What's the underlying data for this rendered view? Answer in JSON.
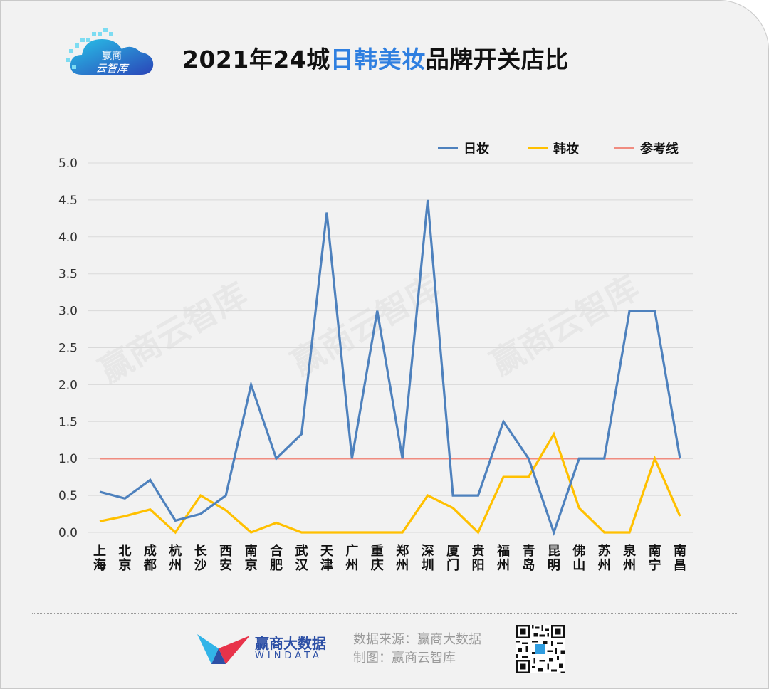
{
  "header": {
    "logo_text": "赢商云智库",
    "title_prefix": "2021年24城",
    "title_highlight": "日韩美妆",
    "title_suffix": "品牌开关店比"
  },
  "watermark": "赢商云智库",
  "chart_data": {
    "type": "line",
    "categories": [
      [
        "上",
        "海"
      ],
      [
        "北",
        "京"
      ],
      [
        "成",
        "都"
      ],
      [
        "杭",
        "州"
      ],
      [
        "长",
        "沙"
      ],
      [
        "西",
        "安"
      ],
      [
        "南",
        "京"
      ],
      [
        "合",
        "肥"
      ],
      [
        "武",
        "汉"
      ],
      [
        "天",
        "津"
      ],
      [
        "广",
        "州"
      ],
      [
        "重",
        "庆"
      ],
      [
        "郑",
        "州"
      ],
      [
        "深",
        "圳"
      ],
      [
        "厦",
        "门"
      ],
      [
        "贵",
        "阳"
      ],
      [
        "福",
        "州"
      ],
      [
        "青",
        "岛"
      ],
      [
        "昆",
        "明"
      ],
      [
        "佛",
        "山"
      ],
      [
        "苏",
        "州"
      ],
      [
        "泉",
        "州"
      ],
      [
        "南",
        "宁"
      ],
      [
        "南",
        "昌"
      ]
    ],
    "ylim": [
      0,
      5
    ],
    "yticks": [
      0,
      0.5,
      1,
      1.5,
      2,
      2.5,
      3,
      3.5,
      4,
      4.5,
      5
    ],
    "grid": true,
    "legend_position": "top-right",
    "series": [
      {
        "name": "日妆",
        "color": "#4e81bd",
        "values": [
          0.55,
          0.46,
          0.71,
          0.16,
          0.25,
          0.5,
          2.0,
          1.0,
          1.33,
          4.33,
          1.0,
          3.0,
          1.0,
          4.5,
          0.5,
          0.5,
          1.5,
          1.0,
          0.0,
          1.0,
          1.0,
          3.0,
          3.0,
          1.0
        ]
      },
      {
        "name": "韩妆",
        "color": "#ffc000",
        "values": [
          0.15,
          0.22,
          0.31,
          0.0,
          0.5,
          0.3,
          0.0,
          0.13,
          0.0,
          0.0,
          0.0,
          0.0,
          0.0,
          0.5,
          0.33,
          0.0,
          0.75,
          0.75,
          1.33,
          0.33,
          0.0,
          0.0,
          1.0,
          0.22
        ]
      },
      {
        "name": "参考线",
        "color": "#f08c80",
        "values": [
          1,
          1,
          1,
          1,
          1,
          1,
          1,
          1,
          1,
          1,
          1,
          1,
          1,
          1,
          1,
          1,
          1,
          1,
          1,
          1,
          1,
          1,
          1,
          1
        ]
      }
    ]
  },
  "footer": {
    "brand_name": "赢商大数据",
    "brand_sub": "WINDATA",
    "source_line1": "数据来源：赢商大数据",
    "source_line2": "制图：赢商云智库"
  }
}
